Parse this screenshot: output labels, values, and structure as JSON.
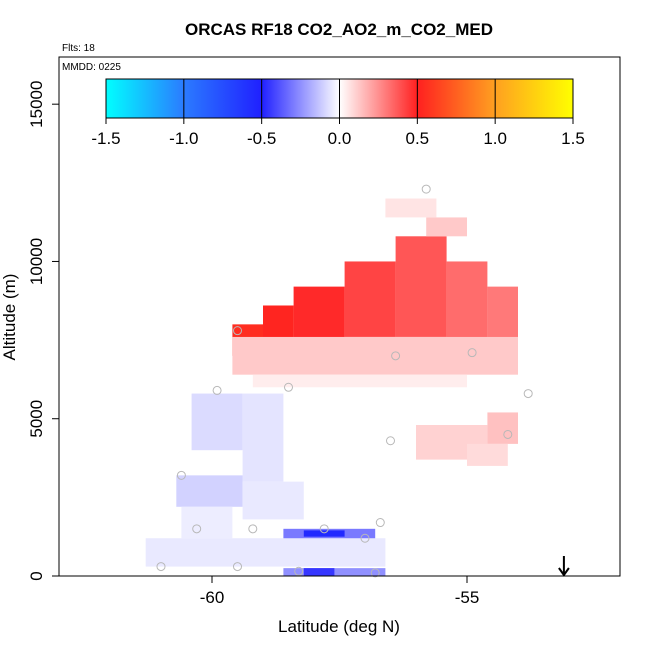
{
  "chart_data": {
    "type": "heatmap",
    "title": "ORCAS RF18 CO2_AO2_m_CO2_MED",
    "flights_label": "Flts: 18",
    "date_label": "MMDD: 0225",
    "xlabel": "Latitude (deg N)",
    "ylabel": "Altitude (m)",
    "xlim": [
      -63.0,
      -52.0
    ],
    "ylim": [
      0,
      16500
    ],
    "x_ticks": [
      -60,
      -55
    ],
    "x_tick_labels": [
      "-60",
      "-55"
    ],
    "y_ticks": [
      0,
      5000,
      10000,
      15000
    ],
    "y_tick_labels": [
      "0",
      "5000",
      "10000",
      "15000"
    ],
    "colorbar": {
      "min": -1.5,
      "max": 1.5,
      "ticks": [
        -1.5,
        -1.0,
        -0.5,
        0.0,
        0.5,
        1.0,
        1.5
      ],
      "tick_labels": [
        "-1.5",
        "-1.0",
        "-0.5",
        "0.0",
        "0.5",
        "1.0",
        "1.5"
      ],
      "stops": [
        {
          "v": -1.5,
          "color": "#00ffff"
        },
        {
          "v": -1.0,
          "color": "#2b7bff"
        },
        {
          "v": -0.5,
          "color": "#2020ff"
        },
        {
          "v": 0.0,
          "color": "#ffffff"
        },
        {
          "v": 0.5,
          "color": "#ff2020"
        },
        {
          "v": 1.0,
          "color": "#ffa020"
        },
        {
          "v": 1.5,
          "color": "#ffff00"
        }
      ]
    },
    "grid_cells": [
      {
        "lat0": -59.6,
        "lat1": -59.0,
        "alt0": 7000,
        "alt1": 8000,
        "value": 0.55
      },
      {
        "lat0": -59.0,
        "lat1": -58.4,
        "alt0": 7200,
        "alt1": 8600,
        "value": 0.52
      },
      {
        "lat0": -58.4,
        "lat1": -57.4,
        "alt0": 7400,
        "alt1": 9200,
        "value": 0.48
      },
      {
        "lat0": -57.4,
        "lat1": -56.4,
        "alt0": 7600,
        "alt1": 10000,
        "value": 0.42
      },
      {
        "lat0": -56.4,
        "lat1": -55.4,
        "alt0": 7600,
        "alt1": 10800,
        "value": 0.38
      },
      {
        "lat0": -55.4,
        "lat1": -54.6,
        "alt0": 7500,
        "alt1": 10000,
        "value": 0.33
      },
      {
        "lat0": -54.6,
        "lat1": -54.0,
        "alt0": 7500,
        "alt1": 9200,
        "value": 0.3
      },
      {
        "lat0": -55.8,
        "lat1": -55.0,
        "alt0": 10800,
        "alt1": 11400,
        "value": 0.12
      },
      {
        "lat0": -56.6,
        "lat1": -55.6,
        "alt0": 11400,
        "alt1": 12000,
        "value": 0.06
      },
      {
        "lat0": -59.6,
        "lat1": -54.0,
        "alt0": 6400,
        "alt1": 7600,
        "value": 0.12
      },
      {
        "lat0": -59.2,
        "lat1": -55.0,
        "alt0": 6000,
        "alt1": 6400,
        "value": 0.04
      },
      {
        "lat0": -56.0,
        "lat1": -54.6,
        "alt0": 3700,
        "alt1": 4800,
        "value": 0.1
      },
      {
        "lat0": -54.6,
        "lat1": -54.0,
        "alt0": 4200,
        "alt1": 5200,
        "value": 0.14
      },
      {
        "lat0": -55.0,
        "lat1": -54.2,
        "alt0": 3500,
        "alt1": 4200,
        "value": 0.08
      },
      {
        "lat0": -60.4,
        "lat1": -59.4,
        "alt0": 4000,
        "alt1": 5800,
        "value": -0.08
      },
      {
        "lat0": -59.4,
        "lat1": -58.6,
        "alt0": 3000,
        "alt1": 5800,
        "value": -0.06
      },
      {
        "lat0": -60.7,
        "lat1": -59.4,
        "alt0": 2200,
        "alt1": 3200,
        "value": -0.1
      },
      {
        "lat0": -59.4,
        "lat1": -58.2,
        "alt0": 1800,
        "alt1": 3000,
        "value": -0.05
      },
      {
        "lat0": -60.6,
        "lat1": -59.6,
        "alt0": 1200,
        "alt1": 2200,
        "value": -0.04
      },
      {
        "lat0": -61.3,
        "lat1": -56.6,
        "alt0": 300,
        "alt1": 1200,
        "value": -0.05
      },
      {
        "lat0": -58.6,
        "lat1": -56.8,
        "alt0": 1200,
        "alt1": 1500,
        "value": -0.3
      },
      {
        "lat0": -58.2,
        "lat1": -57.4,
        "alt0": 1250,
        "alt1": 1450,
        "value": -0.55
      },
      {
        "lat0": -58.6,
        "lat1": -56.6,
        "alt0": 0,
        "alt1": 250,
        "value": -0.25
      },
      {
        "lat0": -58.2,
        "lat1": -57.6,
        "alt0": 0,
        "alt1": 250,
        "value": -0.45
      }
    ],
    "flight_points": [
      {
        "lat": -55.8,
        "alt": 12300
      },
      {
        "lat": -59.5,
        "alt": 7800
      },
      {
        "lat": -56.4,
        "alt": 7000
      },
      {
        "lat": -54.9,
        "alt": 7100
      },
      {
        "lat": -58.5,
        "alt": 6000
      },
      {
        "lat": -59.9,
        "alt": 5900
      },
      {
        "lat": -53.8,
        "alt": 5800
      },
      {
        "lat": -54.2,
        "alt": 4500
      },
      {
        "lat": -56.5,
        "alt": 4300
      },
      {
        "lat": -60.6,
        "alt": 3200
      },
      {
        "lat": -56.7,
        "alt": 1700
      },
      {
        "lat": -60.3,
        "alt": 1500
      },
      {
        "lat": -59.2,
        "alt": 1500
      },
      {
        "lat": -57.8,
        "alt": 1500
      },
      {
        "lat": -57.0,
        "alt": 1200
      },
      {
        "lat": -61.0,
        "alt": 300
      },
      {
        "lat": -59.5,
        "alt": 300
      },
      {
        "lat": -58.3,
        "alt": 150
      },
      {
        "lat": -56.8,
        "alt": 100
      }
    ],
    "marker": {
      "lat": -53.1,
      "alt": 0,
      "direction": "down"
    }
  }
}
